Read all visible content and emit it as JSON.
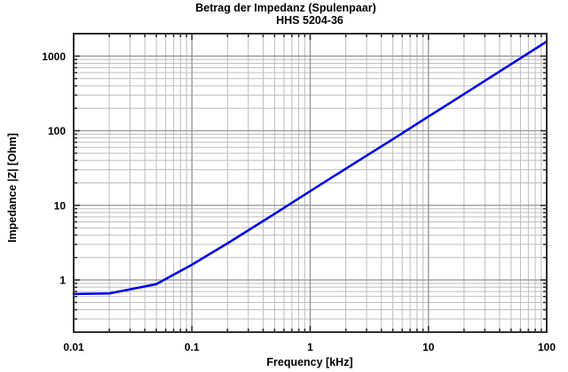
{
  "title": {
    "line1": "Betrag der Impedanz (Spulenpaar)",
    "line2": "HHS 5204-36"
  },
  "axes": {
    "x": {
      "label": "Frequency [kHz]",
      "scale": "log",
      "min": 0.01,
      "max": 100,
      "ticks": [
        0.01,
        0.1,
        1,
        10,
        100
      ],
      "tick_labels": [
        "0.01",
        "0.1",
        "1",
        "10",
        "100"
      ]
    },
    "y": {
      "label": "Impedance |Z|  [Ohm]",
      "scale": "log",
      "min": 0.2,
      "max": 2000,
      "ticks": [
        1,
        10,
        100,
        1000
      ],
      "tick_labels": [
        "1",
        "10",
        "100",
        "1000"
      ]
    }
  },
  "chart_data": {
    "type": "line",
    "title": "Betrag der Impedanz (Spulenpaar)",
    "subtitle": "HHS 5204-36",
    "xlabel": "Frequency [kHz]",
    "ylabel": "Impedance |Z| [Ohm]",
    "x_scale": "log",
    "y_scale": "log",
    "xlim": [
      0.01,
      100
    ],
    "ylim": [
      0.2,
      2000
    ],
    "grid": true,
    "legend": "none",
    "series": [
      {
        "name": "Impedance |Z|",
        "color": "#0000f0",
        "x": [
          0.01,
          0.02,
          0.05,
          0.1,
          0.2,
          0.5,
          1,
          2,
          5,
          10,
          20,
          50,
          100
        ],
        "y": [
          0.65,
          0.66,
          0.88,
          1.6,
          3.1,
          7.7,
          15.5,
          31,
          77,
          155,
          310,
          780,
          1570
        ]
      }
    ]
  },
  "colors": {
    "curve": "#0000f0",
    "grid_minor": "#bdbdbd",
    "grid_major": "#9a9a9a",
    "frame": "#2e2e2e",
    "text": "#000000",
    "background": "#ffffff"
  }
}
